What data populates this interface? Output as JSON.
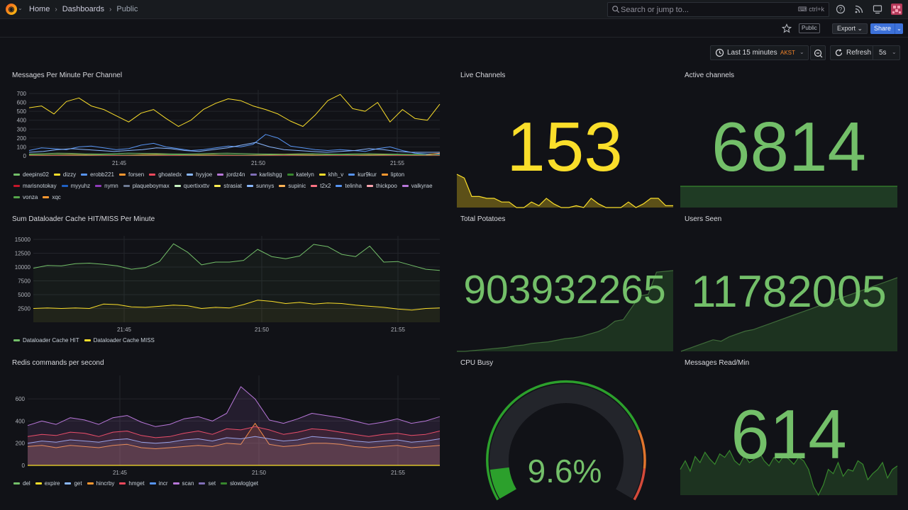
{
  "topbar": {
    "breadcrumbs": [
      "Home",
      "Dashboards",
      "Public"
    ],
    "search_placeholder": "Search or jump to...",
    "search_shortcut": "ctrl+k",
    "icons": [
      "grafana-logo-icon",
      "chevron-down-icon",
      "search-icon",
      "keyboard-icon",
      "help-icon",
      "rss-icon",
      "monitor-icon",
      "avatar"
    ]
  },
  "toolbar": {
    "public_tag": "Public",
    "export_label": "Export",
    "share_label": "Share",
    "time_range": "Last 15 minutes",
    "timezone": "AKST",
    "refresh_label": "Refresh",
    "refresh_interval": "5s"
  },
  "colors": {
    "green": "#73bf69",
    "yellow": "#fade2a",
    "dark_yellow": "#5c5018",
    "red": "#f2495c",
    "orange": "#ff9830",
    "blue": "#5794f2",
    "purple": "#b877d9",
    "bg": "#111217"
  },
  "panels": {
    "messages_per_minute": {
      "title": "Messages Per Minute Per Channel",
      "chart_data": {
        "type": "line",
        "y_ticks": [
          "700",
          "600",
          "500",
          "400",
          "300",
          "200",
          "100",
          "0"
        ],
        "x_ticks": [
          "21:45",
          "21:50",
          "21:55"
        ],
        "ylim": [
          0,
          700
        ],
        "series": [
          {
            "name": "deepins02",
            "color": "#73bf69",
            "values": [
              20,
              25,
              30,
              28,
              22,
              20,
              25,
              30,
              28,
              26,
              22,
              20,
              24,
              28,
              30,
              26,
              22,
              20,
              18,
              22,
              25,
              20,
              18,
              22,
              24,
              20,
              18,
              15,
              20,
              22
            ]
          },
          {
            "name": "dizzy",
            "color": "#fade2a",
            "values": [
              540,
              560,
              470,
              610,
              650,
              560,
              520,
              450,
              380,
              480,
              520,
              420,
              330,
              400,
              520,
              590,
              640,
              620,
              560,
              520,
              470,
              390,
              330,
              460,
              620,
              690,
              530,
              500,
              600,
              380,
              520,
              420,
              400,
              580
            ]
          },
          {
            "name": "erobb221",
            "color": "#5794f2",
            "values": [
              60,
              90,
              80,
              70,
              100,
              110,
              90,
              70,
              80,
              120,
              140,
              100,
              80,
              60,
              70,
              90,
              110,
              100,
              130,
              240,
              200,
              110,
              90,
              70,
              60,
              70,
              60,
              50,
              80,
              100,
              60,
              30,
              20,
              20
            ]
          },
          {
            "name": "forsen",
            "color": "#ff9830",
            "values": [
              10,
              12,
              14,
              15,
              12,
              10,
              8,
              10,
              14,
              16,
              12,
              10,
              12,
              14,
              10,
              8,
              10,
              12,
              15,
              14,
              12,
              10,
              8,
              10,
              12,
              14,
              10,
              8,
              10,
              30
            ]
          },
          {
            "name": "ghoatedx",
            "color": "#f2495c",
            "values": [
              5,
              5,
              6,
              5,
              4,
              5,
              6,
              5,
              4,
              5,
              6,
              5,
              4,
              5,
              6,
              5,
              4,
              5,
              6,
              5,
              4,
              5,
              6,
              5,
              4,
              5,
              6,
              5,
              4,
              5
            ]
          },
          {
            "name": "hyyjoe",
            "color": "#8ab8ff",
            "values": [
              40,
              50,
              70,
              80,
              70,
              60,
              50,
              60,
              70,
              90,
              80,
              60,
              50,
              70,
              90,
              120,
              150,
              100,
              70,
              60,
              50,
              40,
              50,
              60,
              80,
              70,
              50,
              40,
              40,
              40
            ]
          },
          {
            "name": "vonza",
            "color": "#56a64b",
            "values": [
              10,
              10,
              12,
              10,
              8,
              10,
              12,
              10,
              8,
              10,
              12,
              10,
              8,
              10,
              12,
              10,
              8,
              10,
              12,
              10,
              8,
              10,
              12,
              10,
              8,
              10,
              12,
              10,
              8,
              10
            ]
          }
        ]
      },
      "legend": [
        {
          "name": "deepins02",
          "color": "#73bf69"
        },
        {
          "name": "dizzy",
          "color": "#fade2a"
        },
        {
          "name": "erobb221",
          "color": "#5794f2"
        },
        {
          "name": "forsen",
          "color": "#ff9830"
        },
        {
          "name": "ghoatedx",
          "color": "#f2495c"
        },
        {
          "name": "hyyjoe",
          "color": "#8ab8ff"
        },
        {
          "name": "jordz4n",
          "color": "#b877d9"
        },
        {
          "name": "karlishgg",
          "color": "#806eb7"
        },
        {
          "name": "katelyn",
          "color": "#37872d"
        },
        {
          "name": "khh_v",
          "color": "#fade2a"
        },
        {
          "name": "kur9kur",
          "color": "#5794f2"
        },
        {
          "name": "lipton",
          "color": "#ff9830"
        },
        {
          "name": "marisnotokay",
          "color": "#c4162a"
        },
        {
          "name": "myyuhz",
          "color": "#1f60c4"
        },
        {
          "name": "nymn",
          "color": "#8f3bb8"
        },
        {
          "name": "plaqueboymax",
          "color": "#6e7a93"
        },
        {
          "name": "quertixxttv",
          "color": "#c8f2c2"
        },
        {
          "name": "strasiat",
          "color": "#ffee52"
        },
        {
          "name": "sunnys",
          "color": "#8ab8ff"
        },
        {
          "name": "supinic",
          "color": "#ffb357"
        },
        {
          "name": "t2x2",
          "color": "#ff7383"
        },
        {
          "name": "telinha",
          "color": "#5794f2"
        },
        {
          "name": "thickpoo",
          "color": "#ffa6b0"
        },
        {
          "name": "valkyrae",
          "color": "#b877d9"
        },
        {
          "name": "vonza",
          "color": "#56a64b"
        },
        {
          "name": "xqc",
          "color": "#ff9830"
        }
      ]
    },
    "live_channels": {
      "title": "Live Channels",
      "value": "153",
      "color": "#fade2a",
      "sparkline": [
        18,
        16,
        6,
        6,
        5,
        5,
        3,
        3,
        0,
        0,
        3,
        1,
        5,
        2,
        0,
        0,
        1,
        0,
        5,
        2,
        0,
        0,
        0,
        3,
        0,
        2,
        5,
        5,
        1,
        1
      ]
    },
    "active_channels": {
      "title": "Active channels",
      "value": "6814",
      "color": "#73bf69",
      "sparkline": [
        10,
        10,
        10,
        10,
        10,
        10,
        10,
        10,
        10,
        10
      ]
    },
    "dataloader": {
      "title": "Sum Dataloader Cache HIT/MISS Per Minute",
      "chart_data": {
        "type": "line",
        "y_ticks": [
          "15000",
          "12500",
          "10000",
          "7500",
          "5000",
          "2500"
        ],
        "x_ticks": [
          "21:45",
          "21:50",
          "21:55"
        ],
        "ylim": [
          0,
          15000
        ],
        "series": [
          {
            "name": "Dataloader Cache HIT",
            "color": "#73bf69",
            "values": [
              9800,
              10300,
              10200,
              10600,
              10700,
              10500,
              10200,
              9600,
              9900,
              11000,
              14200,
              12700,
              10400,
              10900,
              10900,
              11200,
              13200,
              11900,
              11500,
              12000,
              14100,
              13700,
              12300,
              11900,
              13800,
              10900,
              11000,
              10300,
              9600,
              9400
            ]
          },
          {
            "name": "Dataloader Cache MISS",
            "color": "#fade2a",
            "values": [
              2500,
              2600,
              2500,
              2600,
              2500,
              3300,
              3200,
              2800,
              2700,
              2900,
              3100,
              3000,
              2500,
              2700,
              2600,
              3200,
              4000,
              3800,
              3400,
              3600,
              3300,
              3500,
              3400,
              3100,
              2900,
              2700,
              2400,
              2200,
              2500,
              2600
            ]
          }
        ]
      },
      "legend": [
        {
          "name": "Dataloader Cache HIT",
          "color": "#73bf69"
        },
        {
          "name": "Dataloader Cache MISS",
          "color": "#fade2a"
        }
      ]
    },
    "total_potatoes": {
      "title": "Total Potatoes",
      "value": "903932265",
      "color": "#73bf69",
      "sparkline": [
        0,
        0,
        1,
        2,
        3,
        4,
        5,
        7,
        8,
        10,
        11,
        12,
        14,
        16,
        17,
        19,
        22,
        25,
        30,
        38,
        40,
        55,
        70,
        72,
        100,
        101,
        102
      ]
    },
    "users_seen": {
      "title": "Users Seen",
      "value": "11782005",
      "color": "#73bf69",
      "sparkline": [
        0,
        4,
        8,
        12,
        16,
        14,
        20,
        24,
        28,
        30,
        34,
        38,
        42,
        46,
        50,
        54,
        58,
        62,
        66,
        70,
        74,
        78,
        82,
        86,
        90,
        94,
        98,
        102
      ]
    },
    "redis": {
      "title": "Redis commands per second",
      "chart_data": {
        "type": "area",
        "y_ticks": [
          "600",
          "400",
          "200",
          "0"
        ],
        "x_ticks": [
          "21:45",
          "21:50",
          "21:55"
        ],
        "ylim": [
          0,
          780
        ],
        "series": [
          {
            "name": "hincrby",
            "color": "#ff9830",
            "values": [
              170,
              180,
              160,
              180,
              170,
              160,
              180,
              190,
              160,
              150,
              160,
              170,
              180,
              170,
              200,
              190,
              380,
              190,
              170,
              180,
              200,
              200,
              190,
              170,
              160,
              170,
              180,
              160,
              170,
              180
            ]
          },
          {
            "name": "get",
            "color": "#8ab8ff",
            "values": [
              200,
              220,
              210,
              230,
              220,
              210,
              230,
              240,
              210,
              200,
              210,
              230,
              240,
              220,
              250,
              240,
              260,
              240,
              220,
              230,
              260,
              250,
              240,
              220,
              210,
              220,
              230,
              210,
              220,
              240
            ]
          },
          {
            "name": "hmget",
            "color": "#f2495c",
            "values": [
              260,
              280,
              270,
              300,
              290,
              260,
              300,
              310,
              270,
              250,
              260,
              290,
              310,
              280,
              330,
              320,
              350,
              320,
              280,
              300,
              330,
              320,
              300,
              280,
              260,
              280,
              290,
              270,
              280,
              310
            ]
          },
          {
            "name": "set",
            "color": "#b877d9",
            "values": [
              360,
              400,
              370,
              430,
              410,
              370,
              430,
              450,
              390,
              350,
              370,
              420,
              440,
              400,
              470,
              710,
              600,
              410,
              380,
              420,
              470,
              450,
              430,
              400,
              370,
              390,
              420,
              380,
              400,
              440
            ]
          }
        ]
      },
      "legend": [
        {
          "name": "del",
          "color": "#73bf69"
        },
        {
          "name": "expire",
          "color": "#fade2a"
        },
        {
          "name": "get",
          "color": "#8ab8ff"
        },
        {
          "name": "hincrby",
          "color": "#ff9830"
        },
        {
          "name": "hmget",
          "color": "#f2495c"
        },
        {
          "name": "incr",
          "color": "#5794f2"
        },
        {
          "name": "scan",
          "color": "#b877d9"
        },
        {
          "name": "set",
          "color": "#806eb7"
        },
        {
          "name": "slowlog|get",
          "color": "#37872d"
        }
      ]
    },
    "cpu_busy": {
      "title": "CPU Busy",
      "value": "9.6%",
      "percent": 9.6,
      "color": "#73bf69"
    },
    "messages_read": {
      "title": "Messages Read/Min",
      "value": "614",
      "color": "#73bf69",
      "sparkline": [
        30,
        40,
        28,
        45,
        38,
        50,
        42,
        36,
        48,
        44,
        52,
        40,
        35,
        46,
        38,
        42,
        50,
        40,
        34,
        44,
        38,
        46,
        42,
        36,
        44,
        40,
        30,
        10,
        0,
        12,
        30,
        25,
        38,
        22,
        30,
        28,
        40,
        36,
        18,
        25,
        30,
        38,
        20,
        30,
        34
      ]
    }
  }
}
